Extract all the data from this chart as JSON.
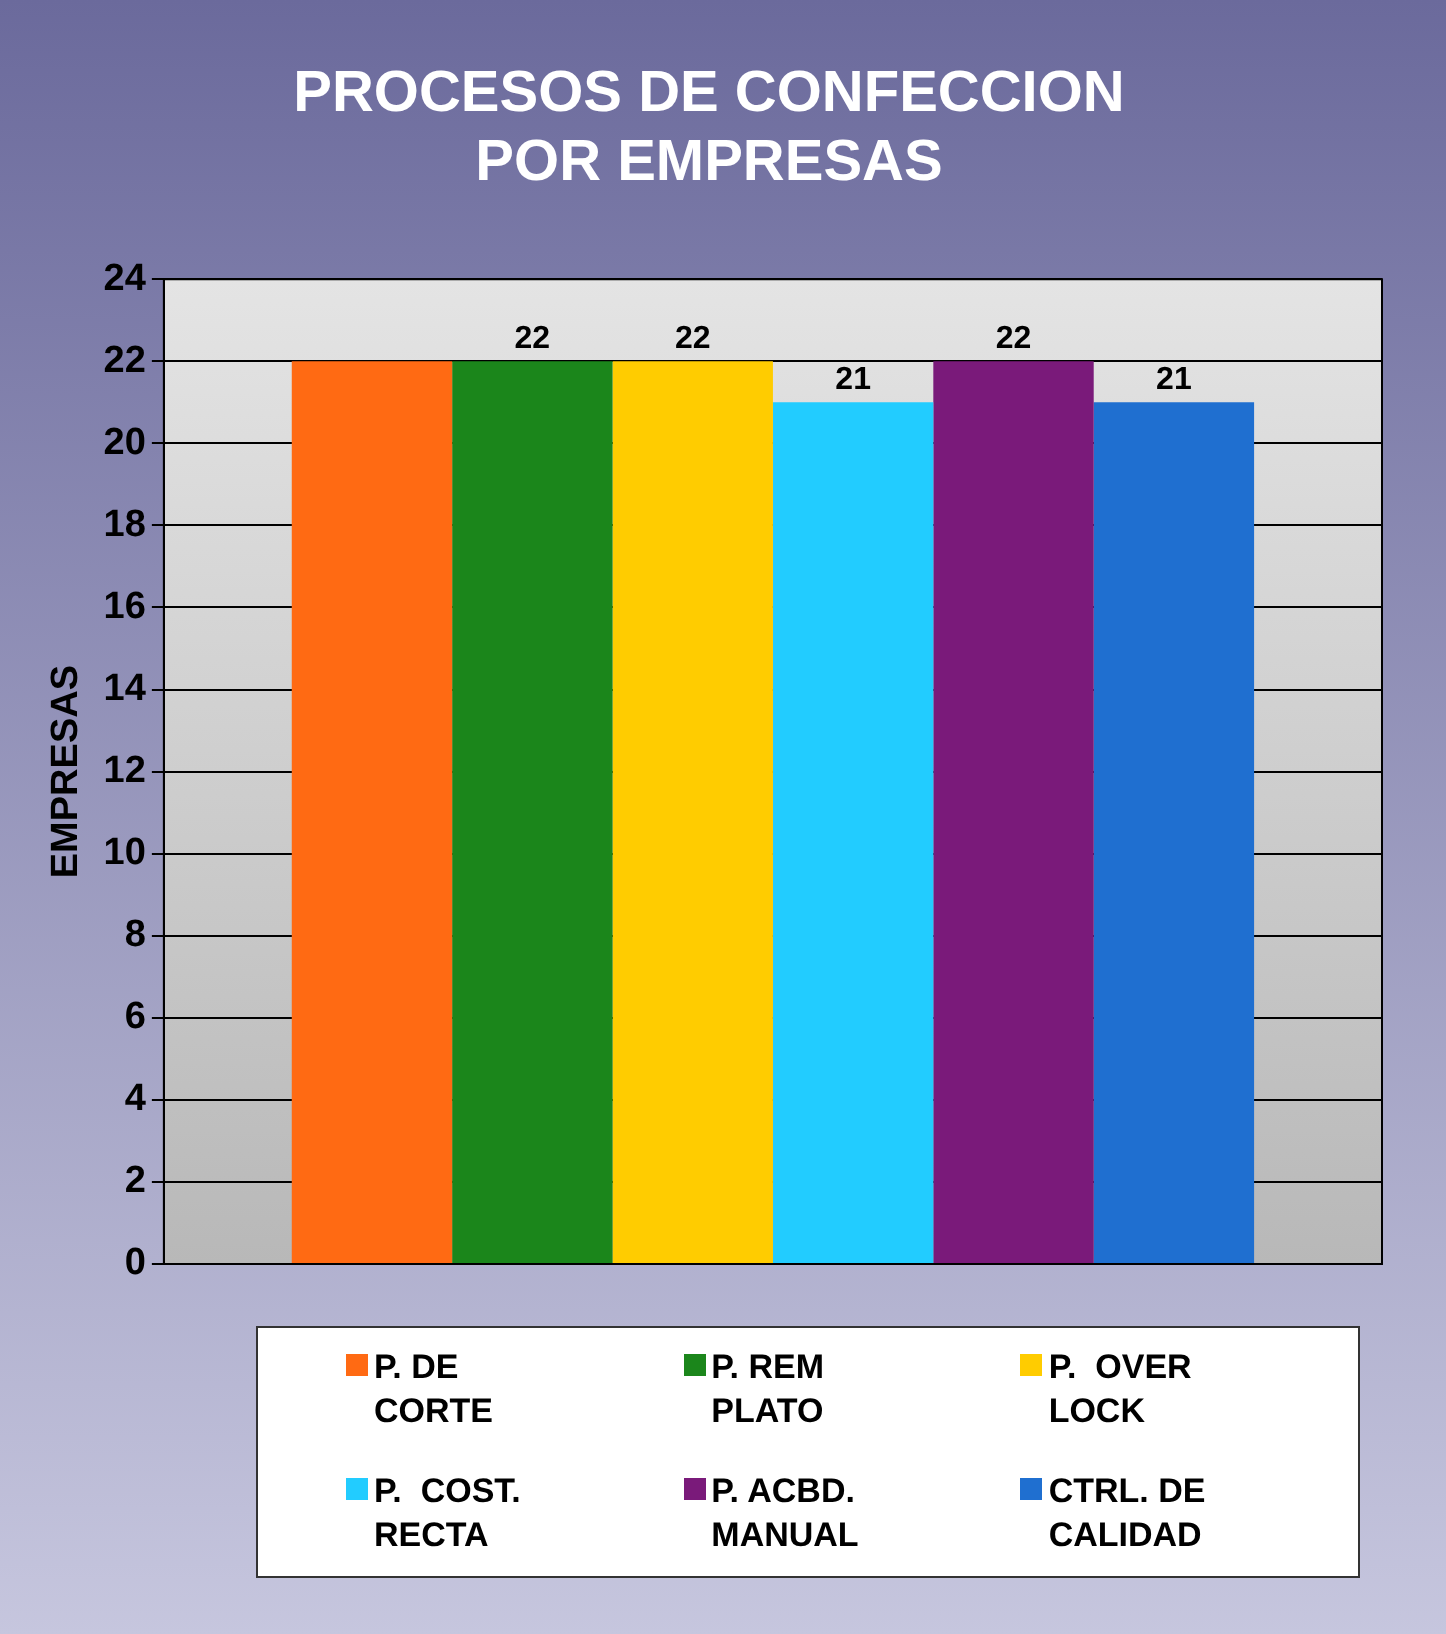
{
  "chart_data": {
    "type": "bar",
    "title": "PROCESOS DE CONFECCION POR EMPRESAS",
    "ylabel": "EMPRESAS",
    "categories": [
      null
    ],
    "series": [
      {
        "name": "P. DE CORTE",
        "color": "#ff6a13",
        "values": [
          22
        ],
        "value_labels": [
          null
        ]
      },
      {
        "name": "P. REM PLATO",
        "color": "#1b861b",
        "values": [
          22
        ],
        "value_labels": [
          "22"
        ]
      },
      {
        "name": "P.  OVER LOCK",
        "color": "#ffcc00",
        "values": [
          22
        ],
        "value_labels": [
          "22"
        ]
      },
      {
        "name": "P.  COST. RECTA",
        "color": "#22ccff",
        "values": [
          21
        ],
        "value_labels": [
          "21"
        ]
      },
      {
        "name": "P. ACBD. MANUAL",
        "color": "#7a1a7a",
        "values": [
          22
        ],
        "value_labels": [
          "22"
        ]
      },
      {
        "name": "CTRL. DE CALIDAD",
        "color": "#1f6fd0",
        "values": [
          21
        ],
        "value_labels": [
          "21"
        ]
      }
    ],
    "ylim": [
      0,
      24
    ],
    "yticks": [
      0,
      2,
      4,
      6,
      8,
      10,
      12,
      14,
      16,
      18,
      20,
      22,
      24
    ],
    "grid": "y",
    "legend": "bottom"
  }
}
